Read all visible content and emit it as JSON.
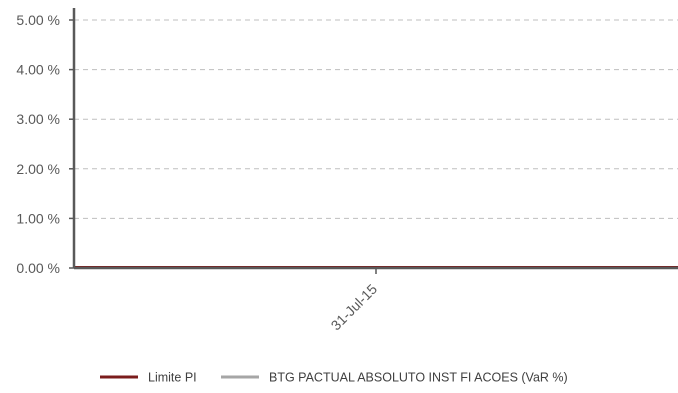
{
  "chart_data": {
    "type": "line",
    "title": "",
    "xlabel": "",
    "ylabel": "",
    "x": [
      "31-Jul-15"
    ],
    "series": [
      {
        "name": "Limite PI",
        "values": [
          0
        ],
        "color": "#7b1c1c"
      },
      {
        "name": "BTG PACTUAL ABSOLUTO INST FI ACOES (VaR %)",
        "values": [
          0
        ],
        "color": "#a6a6a6"
      }
    ],
    "ylim": [
      0,
      5
    ],
    "y_ticks": [
      0,
      1,
      2,
      3,
      4,
      5
    ],
    "y_tick_labels": [
      "0.00 %",
      "1.00 %",
      "2.00 %",
      "3.00 %",
      "4.00 %",
      "5.00 %"
    ],
    "x_tick_labels": [
      "31-Jul-15"
    ],
    "grid": "horizontal-dashed",
    "legend_position": "bottom"
  }
}
